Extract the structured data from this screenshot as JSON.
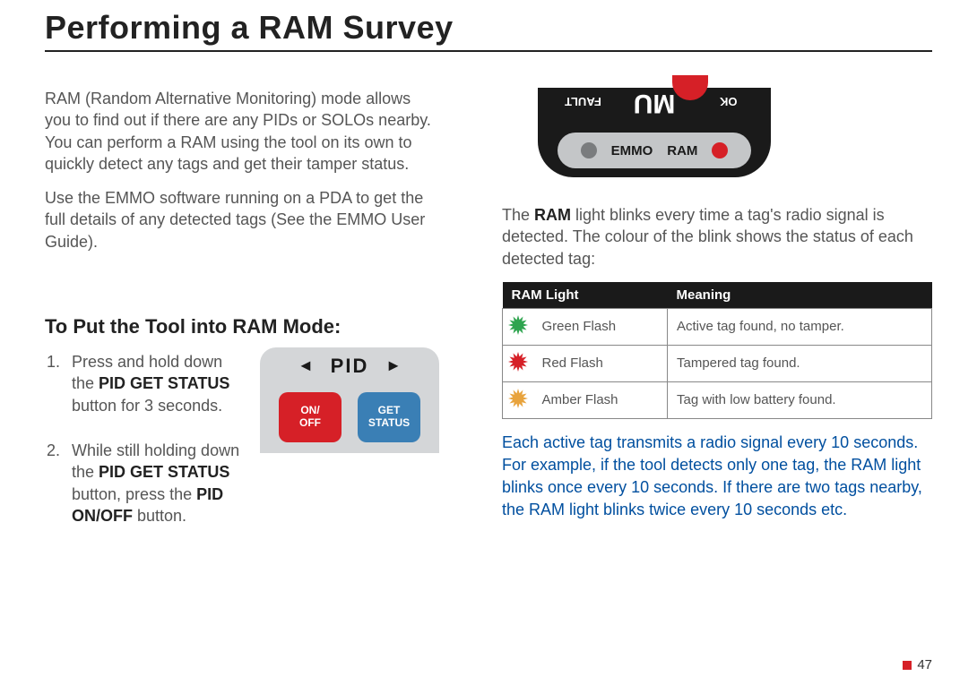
{
  "title": "Performing a RAM Survey",
  "intro": {
    "p1": "RAM (Random Alternative Monitoring) mode allows you to find out if there are any PIDs or SOLOs nearby. You can perform a RAM using the tool on its own to quickly detect any tags and get their tamper status.",
    "p2": "Use the EMMO software running on a PDA to get the full details of any detected tags (See the EMMO User Guide)."
  },
  "subhead": "To Put the Tool into RAM Mode:",
  "steps": {
    "s1a": "Press and hold down the ",
    "s1b": "PID GET STATUS",
    "s1c": " button for 3 seconds.",
    "s2a": "While still holding down the ",
    "s2b": "PID GET STATUS",
    "s2c": " button, press the ",
    "s2d": "PID ON/OFF",
    "s2e": " button."
  },
  "pid_panel": {
    "label": "PID",
    "arrow_left": "◄",
    "arrow_right": "►",
    "btn_onoff_l1": "ON/",
    "btn_onoff_l2": "OFF",
    "btn_get_l1": "GET",
    "btn_get_l2": "STATUS",
    "colors": {
      "panel_bg": "#d4d6d8",
      "onoff": "#d62027",
      "get": "#3a7fb5"
    }
  },
  "mu_panel": {
    "emmo": "EMMO",
    "ram": "RAM",
    "ok": "OK",
    "mu": "MU",
    "fault": "FAULT",
    "colors": {
      "bg": "#1a1a1a",
      "inner": "#c4c6c8",
      "led_grey": "#7a7c7e",
      "led_red": "#d62027"
    }
  },
  "explain": {
    "p1a": "The ",
    "p1b": "RAM",
    "p1c": " light blinks every time a tag's radio signal is detected. The colour of the blink shows the status of each detected tag:"
  },
  "table": {
    "head_light": "RAM Light",
    "head_meaning": "Meaning",
    "rows": [
      {
        "color": "#2ea44f",
        "label": "Green Flash",
        "meaning": "Active tag found, no tamper."
      },
      {
        "color": "#d62027",
        "label": "Red Flash",
        "meaning": "Tampered tag found."
      },
      {
        "color": "#e8a33d",
        "label": "Amber Flash",
        "meaning": "Tag with low battery found."
      }
    ]
  },
  "blue_note": "Each active tag transmits a radio signal every 10 seconds. For example, if the tool detects only one tag, the RAM light blinks once every 10 seconds. If there are two tags nearby, the RAM light blinks twice every 10 seconds etc.",
  "page_number": "47"
}
